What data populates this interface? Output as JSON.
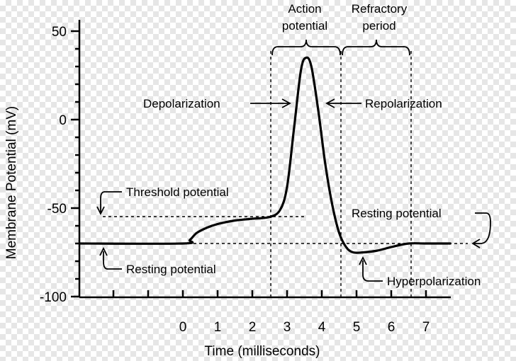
{
  "chart_data": {
    "type": "line",
    "xlabel": "Time (milliseconds)",
    "ylabel": "Membrane Potential (mV)",
    "xlim": [
      -3,
      7.7
    ],
    "ylim": [
      -100,
      55
    ],
    "x_ticks": [
      0,
      1,
      2,
      3,
      4,
      5,
      6,
      7
    ],
    "y_ticks": [
      50,
      0,
      -50,
      -100
    ],
    "grid": false,
    "series": [
      {
        "x": [
          -3,
          0.0,
          0.2,
          0.4,
          0.7,
          1.0,
          1.5,
          2.0,
          2.5,
          2.8,
          3.0,
          3.2,
          3.4,
          3.55,
          3.7,
          3.9,
          4.1,
          4.3,
          4.5,
          4.7,
          4.9,
          5.2,
          5.6,
          6.0,
          6.5,
          7.0,
          7.7
        ],
        "y": [
          -70,
          -70,
          -68,
          -64,
          -61,
          -59,
          -57,
          -56,
          -55,
          -51,
          -38,
          -5,
          28,
          35,
          30,
          5,
          -25,
          -48,
          -64,
          -72,
          -75,
          -75,
          -74,
          -72,
          -70,
          -70,
          -70
        ]
      }
    ],
    "annotations": {
      "action_potential": [
        "Action",
        "potential"
      ],
      "refractory_period": [
        "Refractory",
        "period"
      ],
      "depolarization": "Depolarization",
      "repolarization": "Repolarization",
      "threshold_potential": "Threshold potential",
      "resting_potential_left": "Resting potential",
      "resting_potential_right": "Resting potential",
      "hyperpolarization": "Hyperpolarization"
    },
    "reference_lines": {
      "threshold_mV": -55,
      "resting_mV": -70
    }
  }
}
